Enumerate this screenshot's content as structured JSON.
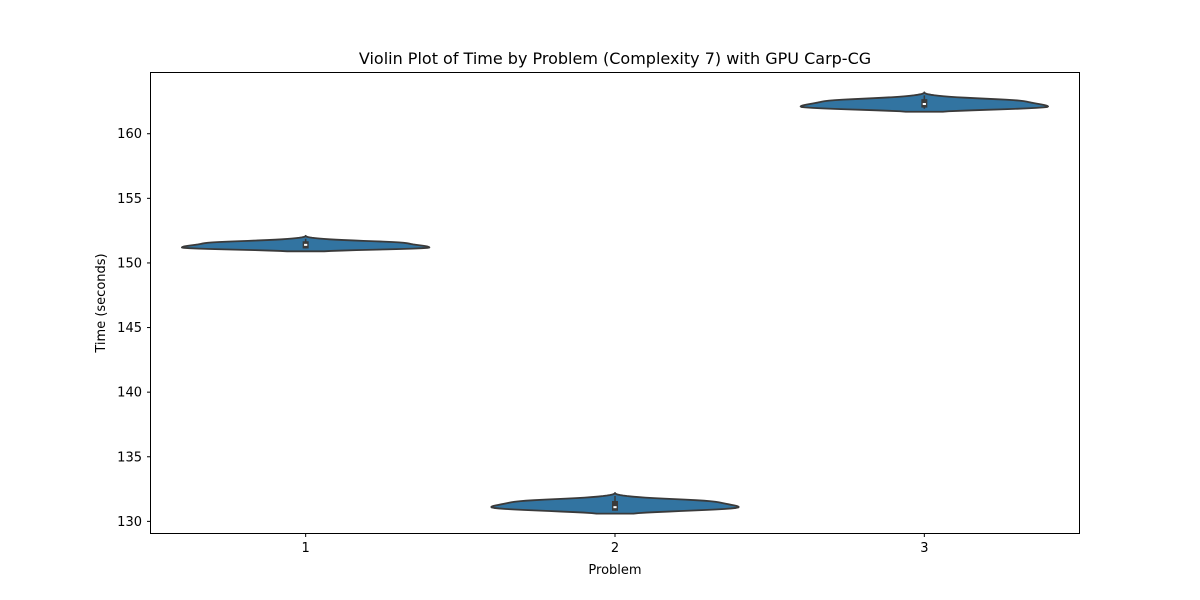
{
  "chart_data": {
    "type": "violin",
    "title": "Violin Plot of Time by Problem (Complexity 7) with GPU Carp-CG",
    "xlabel": "Problem",
    "ylabel": "Time (seconds)",
    "categories": [
      "1",
      "2",
      "3"
    ],
    "yticks": [
      130,
      135,
      140,
      145,
      150,
      155,
      160
    ],
    "ylim": [
      129.1,
      164.7
    ],
    "grid": false,
    "color": "#3274a1",
    "edge_color": "#3a3a3a",
    "violins": [
      {
        "category": "1",
        "min": 150.9,
        "max": 152.1,
        "mode": 151.2,
        "q1": 151.2,
        "median": 151.4,
        "q3": 151.6
      },
      {
        "category": "2",
        "min": 130.6,
        "max": 132.2,
        "mode": 131.1,
        "q1": 130.9,
        "median": 131.1,
        "q3": 131.5
      },
      {
        "category": "3",
        "min": 161.7,
        "max": 163.2,
        "mode": 162.1,
        "q1": 162.1,
        "median": 162.3,
        "q3": 162.6
      }
    ]
  }
}
